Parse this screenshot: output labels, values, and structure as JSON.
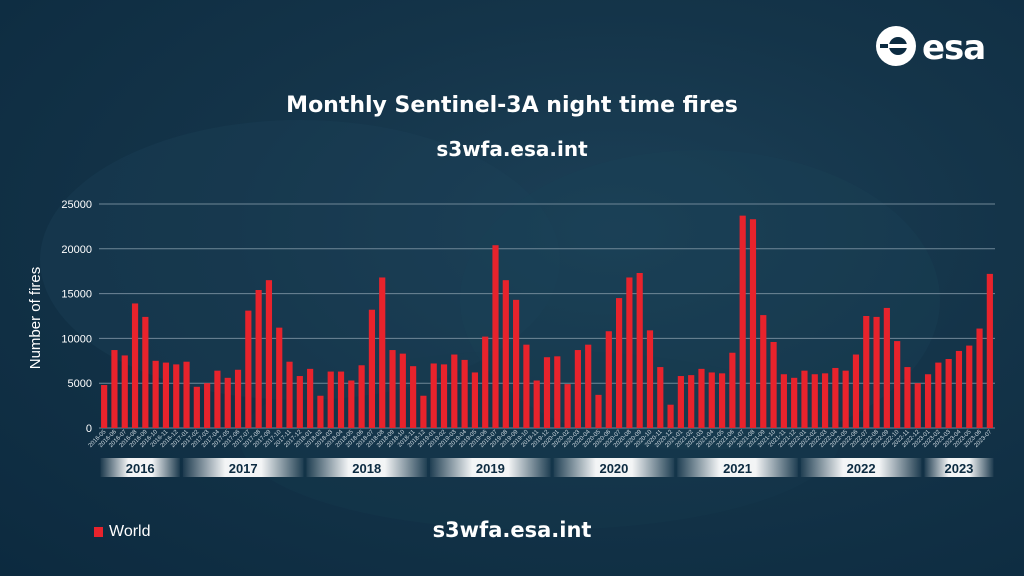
{
  "title": "Monthly Sentinel-3A night time fires",
  "subtitle": "s3wfa.esa.int",
  "footer_url": "s3wfa.esa.int",
  "logo_text": "esa",
  "colors": {
    "bar": "#e8232c",
    "background": "#0c2b41",
    "text": "#ffffff",
    "grid": "#6f8797"
  },
  "chart_data": {
    "type": "bar",
    "title": "Monthly Sentinel-3A night time fires",
    "ylabel": "Number of fires",
    "xlabel": "",
    "ylim": [
      0,
      25000
    ],
    "yticks": [
      0,
      5000,
      10000,
      15000,
      20000,
      25000
    ],
    "grid": true,
    "legend": "bottom-left",
    "series": [
      {
        "name": "World"
      }
    ],
    "categories": [
      "2016-05",
      "2016-06",
      "2016-07",
      "2016-08",
      "2016-09",
      "2016-10",
      "2016-11",
      "2016-12",
      "2017-01",
      "2017-02",
      "2017-03",
      "2017-04",
      "2017-05",
      "2017-06",
      "2017-07",
      "2017-08",
      "2017-09",
      "2017-10",
      "2017-11",
      "2017-12",
      "2018-01",
      "2018-02",
      "2018-03",
      "2018-04",
      "2018-05",
      "2018-06",
      "2018-07",
      "2018-08",
      "2018-09",
      "2018-10",
      "2018-11",
      "2018-12",
      "2019-01",
      "2019-02",
      "2019-03",
      "2019-04",
      "2019-05",
      "2019-06",
      "2019-07",
      "2019-08",
      "2019-09",
      "2019-10",
      "2019-11",
      "2019-12",
      "2020-01",
      "2020-02",
      "2020-03",
      "2020-04",
      "2020-05",
      "2020-06",
      "2020-07",
      "2020-08",
      "2020-09",
      "2020-10",
      "2020-11",
      "2020-12",
      "2021-01",
      "2021-02",
      "2021-03",
      "2021-04",
      "2021-05",
      "2021-06",
      "2021-07",
      "2021-08",
      "2021-09",
      "2021-10",
      "2021-11",
      "2021-12",
      "2022-01",
      "2022-02",
      "2022-03",
      "2022-04",
      "2022-05",
      "2022-06",
      "2022-07",
      "2022-08",
      "2022-09",
      "2022-10",
      "2022-11",
      "2022-12",
      "2023-01",
      "2023-02",
      "2023-03",
      "2023-04",
      "2023-05",
      "2023-06",
      "2023-07"
    ],
    "values": [
      4800,
      8700,
      8100,
      13900,
      12400,
      7500,
      7300,
      7100,
      7400,
      4600,
      5000,
      6400,
      5600,
      6500,
      13100,
      15400,
      16500,
      11200,
      7400,
      5800,
      6600,
      3600,
      6300,
      6300,
      5300,
      7000,
      13200,
      16800,
      8700,
      8300,
      6900,
      3600,
      7200,
      7100,
      8200,
      7600,
      6200,
      10200,
      20400,
      16500,
      14300,
      9300,
      5300,
      7900,
      8000,
      4900,
      8700,
      9300,
      3700,
      10800,
      14500,
      16800,
      17300,
      10900,
      6800,
      2600,
      5800,
      5900,
      6600,
      6200,
      6100,
      8400,
      23700,
      23300,
      12600,
      9600,
      6000,
      5600,
      6400,
      6000,
      6100,
      6700,
      6400,
      8200,
      12500,
      12400,
      13400,
      9700,
      6800,
      5000,
      6000,
      7300,
      7700,
      8600,
      9200,
      11100,
      17200
    ],
    "years": [
      {
        "label": "2016",
        "start": "2016-05",
        "end": "2016-12"
      },
      {
        "label": "2017",
        "start": "2017-01",
        "end": "2017-12"
      },
      {
        "label": "2018",
        "start": "2018-01",
        "end": "2018-12"
      },
      {
        "label": "2019",
        "start": "2019-01",
        "end": "2019-12"
      },
      {
        "label": "2020",
        "start": "2020-01",
        "end": "2020-12"
      },
      {
        "label": "2021",
        "start": "2021-01",
        "end": "2021-12"
      },
      {
        "label": "2022",
        "start": "2022-01",
        "end": "2022-12"
      },
      {
        "label": "2023",
        "start": "2023-01",
        "end": "2023-07"
      }
    ]
  }
}
